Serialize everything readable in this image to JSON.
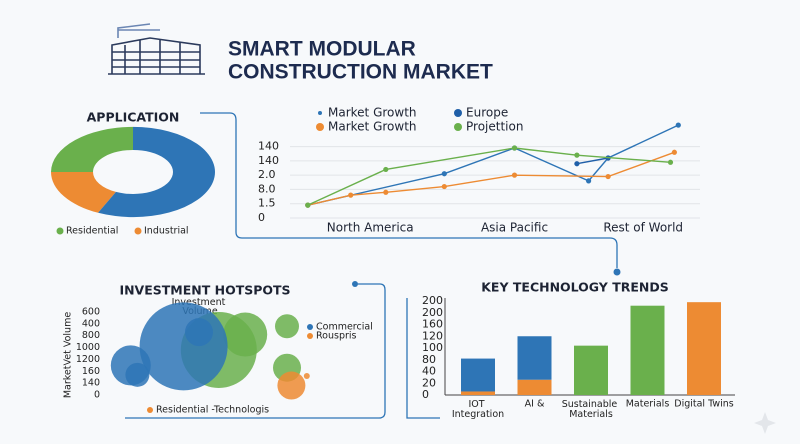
{
  "title_lines": [
    "SMART MODULAR",
    "CONSTRUCTION MARKET"
  ],
  "chart_data": [
    {
      "type": "pie",
      "title": "APPLICATION",
      "donut": true,
      "categories": [
        "Residential",
        "Industrial",
        null
      ],
      "values": [
        25,
        18,
        57
      ],
      "colors": [
        "#6ab04c",
        "#ed8b33",
        "#2e75b6"
      ]
    },
    {
      "type": "line",
      "grid": true,
      "xlim": [
        0,
        1
      ],
      "xticks": [
        {
          "value": 0.18,
          "label": "North America"
        },
        {
          "value": 0.55,
          "label": "Asia Pacific"
        },
        {
          "value": 0.88,
          "label": "Rest of World"
        }
      ],
      "ylim": [
        0,
        7
      ],
      "yticks": [
        0,
        {
          "value": 1,
          "label": "1.5"
        },
        {
          "value": 2,
          "label": "8.0"
        },
        {
          "value": 3,
          "label": "2.0"
        },
        {
          "value": 4,
          "label": "140"
        },
        {
          "value": 5,
          "label": "140"
        }
      ],
      "series": [
        {
          "name": "Market Growth",
          "color": "#2e75b6",
          "x": [
            0.02,
            0.37,
            0.55,
            0.74,
            0.79,
            0.97
          ],
          "values": [
            0.9,
            3.1,
            4.9,
            2.6,
            4.2,
            6.5
          ]
        },
        {
          "name": "Europe",
          "color": "#1f5fa8",
          "x": [
            0.71,
            0.79
          ],
          "values": [
            3.8,
            4.2
          ]
        },
        {
          "name": "Market Growth",
          "color": "#ed8b33",
          "x": [
            0.02,
            0.13,
            0.22,
            0.37,
            0.55,
            0.79,
            0.96
          ],
          "values": [
            0.9,
            1.6,
            1.8,
            2.2,
            3.0,
            2.9,
            4.6
          ]
        },
        {
          "name": "Projettion",
          "color": "#6ab04c",
          "x": [
            0.02,
            0.22,
            0.55,
            0.71,
            0.95
          ],
          "values": [
            0.9,
            3.4,
            4.9,
            4.4,
            3.9
          ]
        }
      ]
    },
    {
      "type": "scatter",
      "title": "INVESTMENT HOTSPOTS",
      "annotation": "Investment Volume",
      "ylabel": "MarketVet Volume",
      "footnote": "Residential -Technologis",
      "legend": "upper right",
      "xlim": [
        0,
        10
      ],
      "ylim": [
        0,
        7
      ],
      "yticks": [
        0,
        {
          "value": 1,
          "label": "140"
        },
        {
          "value": 2,
          "label": "160"
        },
        {
          "value": 3,
          "label": "1200"
        },
        {
          "value": 4,
          "label": "1000"
        },
        {
          "value": 5,
          "label": "800"
        },
        {
          "value": 6,
          "label": "400"
        },
        {
          "value": 7,
          "label": "600"
        }
      ],
      "series": [
        {
          "name": "Commercial",
          "color": "#2e75b6",
          "x": [
            3.8,
            1.4,
            1.7,
            4.5
          ],
          "values": [
            4.1,
            2.5,
            1.7,
            5.3
          ],
          "sizes": [
            44,
            20,
            12,
            14
          ]
        },
        {
          "name": "Rouspris",
          "color": "#ed8b33",
          "x": [
            8.7,
            9.4
          ],
          "values": [
            0.8,
            1.6
          ],
          "sizes": [
            14,
            3
          ]
        },
        {
          "color": "#6ab04c",
          "x": [
            5.4,
            6.6,
            8.5,
            8.5
          ],
          "values": [
            3.8,
            5.1,
            5.8,
            2.3
          ],
          "sizes": [
            38,
            22,
            12,
            14
          ]
        }
      ]
    },
    {
      "type": "bar",
      "title": "KEY TECHNOLOGY TRENDS",
      "stacked": true,
      "categories": [
        "IOT Integration",
        "AI &",
        "Sustainable Materials",
        "Materials",
        "Digital Twins"
      ],
      "ylim": [
        0,
        8
      ],
      "yticks": [
        0,
        {
          "value": 1,
          "label": "20"
        },
        {
          "value": 2,
          "label": "40"
        },
        {
          "value": 3,
          "label": "80"
        },
        {
          "value": 4,
          "label": "100"
        },
        {
          "value": 5,
          "label": "120"
        },
        {
          "value": 6,
          "label": "160"
        },
        {
          "value": 7,
          "label": "200"
        },
        {
          "value": 8,
          "label": "200"
        }
      ],
      "series": [
        {
          "color": "#ed8b33",
          "values": [
            0.3,
            1.3,
            null,
            null,
            7.9
          ]
        },
        {
          "color": "#2e75b6",
          "values": [
            2.8,
            3.7,
            null,
            null,
            null
          ]
        },
        {
          "color": "#6ab04c",
          "values": [
            null,
            null,
            4.2,
            7.6,
            null
          ]
        }
      ]
    }
  ]
}
